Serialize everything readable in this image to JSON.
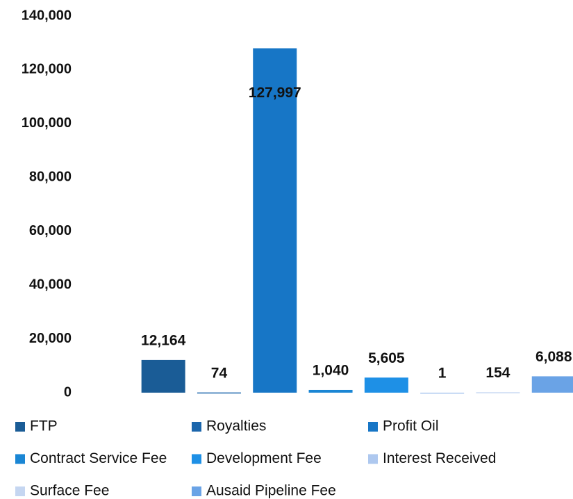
{
  "chart_data": {
    "type": "bar",
    "series": [
      {
        "name": "FTP",
        "color": "#1a5c96",
        "values": [
          12164
        ],
        "value_labels": [
          "12,164"
        ]
      },
      {
        "name": "Royalties",
        "color": "#1b66ac",
        "values": [
          74
        ],
        "value_labels": [
          "74"
        ]
      },
      {
        "name": "Profit Oil",
        "color": "#1776c6",
        "values": [
          127997
        ],
        "value_labels": [
          "127,997"
        ]
      },
      {
        "name": "Contract Service Fee",
        "color": "#1a86d4",
        "values": [
          1040
        ],
        "value_labels": [
          "1,040"
        ]
      },
      {
        "name": "Development Fee",
        "color": "#1e90e6",
        "values": [
          5605
        ],
        "value_labels": [
          "5,605"
        ]
      },
      {
        "name": "Interest Received",
        "color": "#aec8ef",
        "values": [
          1
        ],
        "value_labels": [
          "1"
        ]
      },
      {
        "name": "Surface Fee",
        "color": "#c5d6f1",
        "values": [
          154
        ],
        "value_labels": [
          "154"
        ]
      },
      {
        "name": "Ausaid Pipeline Fee",
        "color": "#6aa3e6",
        "values": [
          6088
        ],
        "value_labels": [
          "6,088"
        ]
      }
    ],
    "ylim": [
      0,
      140000
    ],
    "yticks": [
      0,
      {
        "value": 20000,
        "label": "20,000"
      },
      {
        "value": 40000,
        "label": "40,000"
      },
      {
        "value": 60000,
        "label": "60,000"
      },
      {
        "value": 80000,
        "label": "80,000"
      },
      {
        "value": 100000,
        "label": "100,000"
      },
      {
        "value": 120000,
        "label": "120,000"
      },
      {
        "value": 140000,
        "label": "140,000"
      }
    ],
    "grid": false,
    "legend": "bottom"
  }
}
